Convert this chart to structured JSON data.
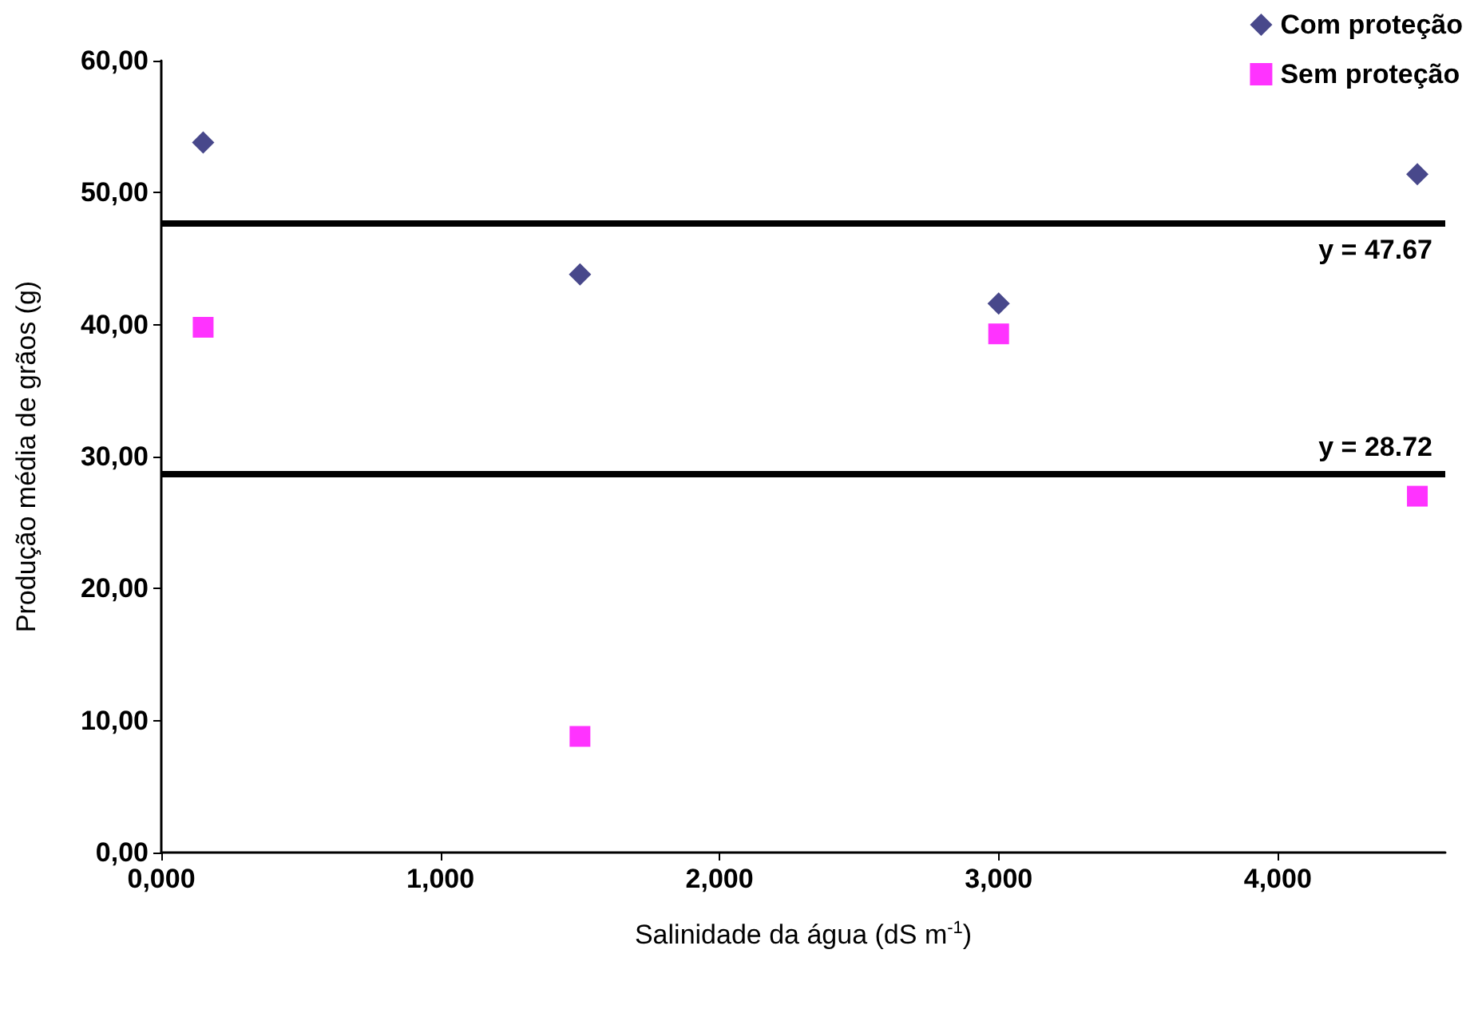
{
  "chart_data": {
    "type": "scatter",
    "xlabel": "Salinidade da água (dS m$^{-1}$)",
    "ylabel": "Produção média de grãos (g)",
    "x": [
      0.15,
      1.5,
      3.0,
      4.5
    ],
    "series": [
      {
        "name": "Com proteção",
        "color": "#1a1a6e",
        "marker": "diamond",
        "values": [
          53.8,
          43.8,
          41.6,
          51.4
        ]
      },
      {
        "name": "Sem proteção",
        "color": "#ff00ff",
        "marker": "square",
        "values": [
          39.8,
          8.8,
          39.3,
          27.0
        ]
      }
    ],
    "xlim": [
      0,
      4.6
    ],
    "xticks": [
      {
        "value": 0,
        "label": "0,000"
      },
      {
        "value": 1,
        "label": "1,000"
      },
      {
        "value": 2,
        "label": "2,000"
      },
      {
        "value": 3,
        "label": "3,000"
      },
      {
        "value": 4,
        "label": "4,000"
      }
    ],
    "ylim": [
      0,
      60
    ],
    "yticks": [
      {
        "value": 0,
        "label": "0,00"
      },
      {
        "value": 10,
        "label": "10,00"
      },
      {
        "value": 20,
        "label": "20,00"
      },
      {
        "value": 30,
        "label": "30,00"
      },
      {
        "value": 40,
        "label": "40,00"
      },
      {
        "value": 50,
        "label": "50,00"
      },
      {
        "value": 60,
        "label": "60,00"
      }
    ],
    "ref_lines": [
      {
        "axis": "y",
        "value": 47.67,
        "label": "y = 47.67",
        "color": "#000000"
      },
      {
        "axis": "y",
        "value": 28.72,
        "label": "y = 28.72",
        "color": "#000000"
      }
    ],
    "grid": false,
    "legend": "top right"
  }
}
